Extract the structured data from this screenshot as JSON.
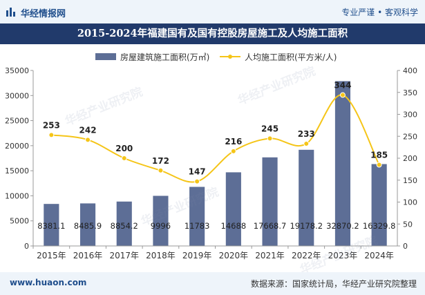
{
  "header": {
    "brand": "华经情报网",
    "slogan": "专业严谨 • 客观科学",
    "logo_icon": "bar-logo-icon"
  },
  "watermark": "华经产业研究院",
  "footer": {
    "website": "www.huaon.com",
    "source": "数据来源：国家统计局，华经产业研究院整理"
  },
  "colors": {
    "bar": "#5d6e96",
    "line": "#f5c518",
    "title_bg": "#213a6b",
    "topbar_bg": "#eef4fa"
  },
  "chart_data": {
    "type": "bar+line",
    "title": "2015-2024年福建国有及国有控股房屋施工及人均施工面积",
    "categories": [
      "2015年",
      "2016年",
      "2017年",
      "2018年",
      "2019年",
      "2020年",
      "2021年",
      "2022年",
      "2023年",
      "2024年"
    ],
    "series": [
      {
        "name": "房屋建筑施工面积(万㎡)",
        "type": "bar",
        "axis": "left",
        "values": [
          8381.1,
          8485.9,
          8854.2,
          9996,
          11783,
          14688,
          17668.7,
          19178.2,
          32870.2,
          16329.8
        ],
        "labels": [
          "8381.1",
          "8485.9",
          "8854.2",
          "9996",
          "11783",
          "14688",
          "17668.7",
          "19178.2",
          "32870.2",
          "16329.8"
        ]
      },
      {
        "name": "人均施工面积(平方米/人)",
        "type": "line",
        "axis": "right",
        "values": [
          253,
          242,
          200,
          172,
          147,
          216,
          245,
          233,
          344,
          185
        ],
        "labels": [
          "253",
          "242",
          "200",
          "172",
          "147",
          "216",
          "245",
          "233",
          "344",
          "185"
        ]
      }
    ],
    "y_left": {
      "min": 0,
      "max": 35000,
      "ticks": [
        "0",
        "5000",
        "10000",
        "15000",
        "20000",
        "25000",
        "30000",
        "35000"
      ]
    },
    "y_right": {
      "min": 0,
      "max": 400,
      "ticks": [
        "0",
        "50",
        "100",
        "150",
        "200",
        "250",
        "300",
        "350",
        "400"
      ]
    },
    "legend_position": "top-center"
  }
}
